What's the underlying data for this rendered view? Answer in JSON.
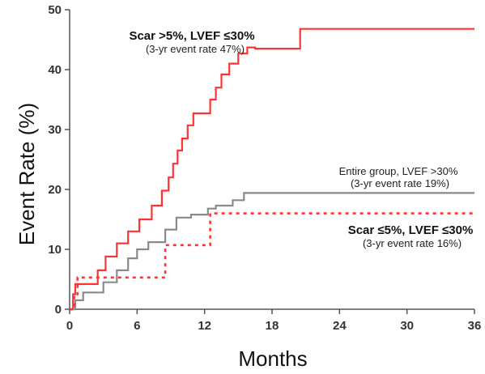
{
  "chart_data": {
    "type": "line",
    "title": "",
    "xlabel": "Months",
    "ylabel": "Event Rate (%)",
    "xlim": [
      0,
      36
    ],
    "ylim": [
      0,
      50
    ],
    "xticks": [
      0,
      6,
      12,
      18,
      24,
      30,
      36
    ],
    "yticks": [
      0,
      10,
      20,
      30,
      40,
      50
    ],
    "grid": false,
    "step": true,
    "series": [
      {
        "name": "Scar >5%, LVEF ≤30%",
        "color": "#ff3333",
        "style": "solid",
        "x": [
          0,
          0.3,
          0.5,
          2.5,
          3.2,
          4.2,
          5.2,
          6.2,
          7.3,
          8.2,
          8.8,
          9.2,
          9.6,
          10.0,
          10.5,
          11.0,
          12.5,
          13.0,
          13.5,
          14.2,
          15.0,
          15.8,
          16.5,
          17.3,
          20.5,
          36
        ],
        "y": [
          0,
          2.5,
          4.2,
          6.5,
          8.8,
          11.0,
          13.0,
          15.0,
          17.3,
          19.8,
          22.0,
          24.3,
          26.5,
          28.5,
          30.7,
          32.7,
          35.0,
          37.0,
          39.2,
          41.0,
          42.7,
          43.7,
          43.5,
          43.5,
          46.8,
          46.8
        ],
        "annotation": {
          "label": "Scar >5%, LVEF ≤30%",
          "sublabel": "(3-yr event rate 47%)"
        }
      },
      {
        "name": "Entire group, LVEF >30%",
        "color": "#8a8a8a",
        "style": "solid",
        "x": [
          0,
          0.5,
          1.2,
          3.0,
          4.2,
          5.2,
          6.0,
          7.0,
          8.5,
          9.5,
          10.8,
          12.3,
          13.0,
          14.5,
          15.5,
          36
        ],
        "y": [
          0,
          1.5,
          2.8,
          4.5,
          6.5,
          8.5,
          10.0,
          11.2,
          13.3,
          15.3,
          15.8,
          16.8,
          17.3,
          18.2,
          19.4,
          19.4
        ],
        "annotation": {
          "label": "Entire group, LVEF >30%",
          "sublabel": "(3-yr event rate 19%)"
        }
      },
      {
        "name": "Scar ≤5%, LVEF ≤30%",
        "color": "#ff3333",
        "style": "dotted",
        "x": [
          0,
          0.4,
          0.7,
          8.5,
          12.5,
          36
        ],
        "y": [
          0,
          2.5,
          5.3,
          10.7,
          16.0,
          16.0
        ],
        "annotation": {
          "label": "Scar ≤5%, LVEF ≤30%",
          "sublabel": "(3-yr event rate 16%)"
        }
      }
    ]
  }
}
